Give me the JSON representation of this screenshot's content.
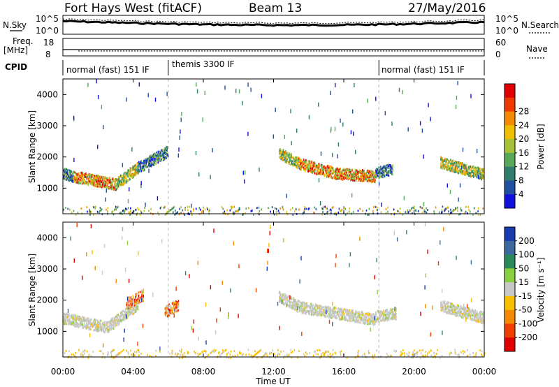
{
  "header": {
    "radar": "Fort Hays West (fitACF)",
    "beam": "Beam 13",
    "date": "27/May/2016"
  },
  "strip_labels": {
    "nsky": "N.Sky",
    "nsky_ticks": [
      "10^5",
      "10^0"
    ],
    "nsearch": "N.Search",
    "nsearch_ticks": [
      "10^5",
      "10^0"
    ],
    "freq_line1": "Freq.",
    "freq_line2": "[MHz]",
    "freq_ticks": [
      "18",
      "8"
    ],
    "nave": "Nave",
    "nave_ticks": [
      "60",
      "0"
    ],
    "cpid": "CPID"
  },
  "cpid_modes": [
    {
      "label": "normal (fast) 151 IF",
      "start_hour": 0,
      "end_hour": 6.0
    },
    {
      "label": "themis 3300 IF",
      "start_hour": 6.0,
      "end_hour": 18.0
    },
    {
      "label": "normal (fast) 151 IF",
      "start_hour": 18.0,
      "end_hour": 24.0
    }
  ],
  "chart_data": [
    {
      "type": "heatmap",
      "name": "power",
      "xlabel": "Time UT",
      "ylabel": "Slant Range [km]",
      "x_ticks": [
        "00:00",
        "04:00",
        "08:00",
        "12:00",
        "16:00",
        "20:00",
        "00:00"
      ],
      "xlim_hours": [
        0,
        24
      ],
      "y_ticks": [
        1000,
        2000,
        3000,
        4000
      ],
      "ylim_km": [
        180,
        4500
      ],
      "colorbar": {
        "label": "Power [dB]",
        "ticks": [
          4,
          8,
          12,
          16,
          20,
          24,
          28
        ],
        "colors": [
          "#1010e0",
          "#2050a0",
          "#2e7d6e",
          "#58a85a",
          "#a6c23a",
          "#f0c000",
          "#f58a00",
          "#ee3a00",
          "#e00000"
        ]
      },
      "echo_bands": [
        {
          "t_start": 0.0,
          "t_end": 0.6,
          "range_start_km": 1500,
          "range_end_km": 1400,
          "level": "low"
        },
        {
          "t_start": 0.6,
          "t_end": 3.0,
          "range_start_km": 1400,
          "range_end_km": 1150,
          "level": "high"
        },
        {
          "t_start": 3.0,
          "t_end": 4.3,
          "range_start_km": 1150,
          "range_end_km": 1700,
          "level": "mid"
        },
        {
          "t_start": 4.3,
          "t_end": 6.0,
          "range_start_km": 1700,
          "range_end_km": 2200,
          "level": "low"
        },
        {
          "t_start": 12.3,
          "t_end": 13.5,
          "range_start_km": 2150,
          "range_end_km": 1800,
          "level": "mid"
        },
        {
          "t_start": 13.5,
          "t_end": 15.5,
          "range_start_km": 1800,
          "range_end_km": 1500,
          "level": "high"
        },
        {
          "t_start": 15.5,
          "t_end": 17.8,
          "range_start_km": 1500,
          "range_end_km": 1400,
          "level": "high"
        },
        {
          "t_start": 17.8,
          "t_end": 18.8,
          "range_start_km": 1500,
          "range_end_km": 1650,
          "level": "low"
        },
        {
          "t_start": 21.5,
          "t_end": 24.0,
          "range_start_km": 1850,
          "range_end_km": 1450,
          "level": "mid"
        }
      ]
    },
    {
      "type": "heatmap",
      "name": "velocity",
      "xlabel": "Time UT",
      "ylabel": "Slant Range [km]",
      "x_ticks": [
        "00:00",
        "04:00",
        "08:00",
        "12:00",
        "16:00",
        "20:00",
        "00:00"
      ],
      "xlim_hours": [
        0,
        24
      ],
      "y_ticks": [
        1000,
        2000,
        3000,
        4000
      ],
      "ylim_km": [
        180,
        4500
      ],
      "colorbar": {
        "label": "Velocity [m s⁻¹]",
        "ticks": [
          200,
          100,
          50,
          15,
          -15,
          -50,
          -100,
          -200
        ],
        "colors": [
          "#1a3ab0",
          "#3a6aa0",
          "#2a8a5a",
          "#8ad040",
          "#c8c8c8",
          "#f8c000",
          "#f58a00",
          "#f04000",
          "#e00000"
        ]
      },
      "echo_bands": [
        {
          "t_start": 0.0,
          "t_end": 2.5,
          "range_start_km": 1450,
          "range_end_km": 1150,
          "level": "ground"
        },
        {
          "t_start": 2.5,
          "t_end": 4.3,
          "range_start_km": 1150,
          "range_end_km": 1900,
          "level": "ground"
        },
        {
          "t_start": 3.6,
          "t_end": 4.6,
          "range_start_km": 1900,
          "range_end_km": 2200,
          "level": "away"
        },
        {
          "t_start": 5.8,
          "t_end": 6.6,
          "range_start_km": 1650,
          "range_end_km": 1900,
          "level": "away"
        },
        {
          "t_start": 12.3,
          "t_end": 13.5,
          "range_start_km": 2150,
          "range_end_km": 1800,
          "level": "ground"
        },
        {
          "t_start": 13.5,
          "t_end": 17.8,
          "range_start_km": 1800,
          "range_end_km": 1400,
          "level": "ground"
        },
        {
          "t_start": 17.8,
          "t_end": 19.0,
          "range_start_km": 1500,
          "range_end_km": 1600,
          "level": "ground"
        },
        {
          "t_start": 21.5,
          "t_end": 24.0,
          "range_start_km": 1850,
          "range_end_km": 1450,
          "level": "ground"
        }
      ]
    }
  ]
}
